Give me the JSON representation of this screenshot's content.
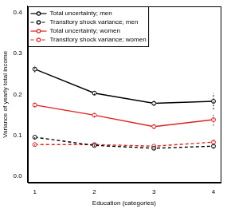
{
  "chart_data": {
    "type": "line",
    "x_label": "Education (categories)",
    "y_label": "Variance of yearly total income",
    "x": [
      1,
      2,
      3,
      4
    ],
    "xlim": [
      0.88,
      4.12
    ],
    "xticks": [
      1,
      2,
      3,
      4
    ],
    "ylim": [
      -0.016,
      0.416
    ],
    "yticks": [
      {
        "value": 0,
        "label": "0.0"
      },
      {
        "value": 0.1,
        "label": "0.1"
      },
      {
        "value": 0.2,
        "label": "0.2"
      },
      {
        "value": 0.3,
        "label": "0.3"
      },
      {
        "value": 0.4,
        "label": "0.4"
      }
    ],
    "grid": false,
    "legend": "top-left",
    "series": [
      {
        "name": "Total uncertainty; men",
        "color": "#000000",
        "line_style": "solid",
        "marker": "circle",
        "values": [
          0.262,
          0.203,
          0.178,
          0.183
        ],
        "errors": [
          0.008,
          0.005,
          0.006,
          0.02
        ]
      },
      {
        "name": "Transitory shock variance; men",
        "color": "#000000",
        "line_style": "dashed",
        "marker": "circle",
        "values": [
          0.095,
          0.075,
          0.068,
          0.073
        ],
        "errors": [
          0.004,
          0.003,
          0.004,
          0.006
        ]
      },
      {
        "name": "Total uncertainty; women",
        "color": "#e0201c",
        "line_style": "solid",
        "marker": "circle",
        "values": [
          0.174,
          0.149,
          0.121,
          0.138
        ],
        "errors": [
          0.006,
          0.005,
          0.006,
          0.015
        ]
      },
      {
        "name": "Transitory shock variance; women",
        "color": "#e0201c",
        "line_style": "dashed",
        "marker": "circle",
        "values": [
          0.077,
          0.077,
          0.073,
          0.083
        ],
        "errors": [
          0.003,
          0.003,
          0.004,
          0.007
        ]
      }
    ]
  }
}
